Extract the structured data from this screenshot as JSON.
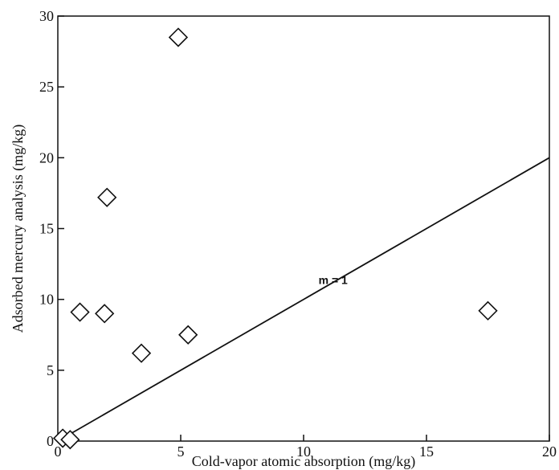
{
  "chart_data": {
    "type": "scatter",
    "xlabel": "Cold-vapor atomic absorption (mg/kg)",
    "ylabel": "Adsorbed mercury analysis (mg/kg)",
    "xlim": [
      0,
      20
    ],
    "ylim": [
      0,
      30
    ],
    "xticks": [
      "0",
      "5",
      "10",
      "15",
      "20"
    ],
    "yticks": [
      "0",
      "5",
      "10",
      "15",
      "20",
      "25",
      "30"
    ],
    "grid": false,
    "marker": "diamond",
    "points": [
      {
        "x": 0.2,
        "y": 0.2
      },
      {
        "x": 0.5,
        "y": 0.1
      },
      {
        "x": 0.9,
        "y": 9.1
      },
      {
        "x": 1.9,
        "y": 9.0
      },
      {
        "x": 2.0,
        "y": 17.2
      },
      {
        "x": 3.4,
        "y": 6.2
      },
      {
        "x": 4.9,
        "y": 28.5
      },
      {
        "x": 5.3,
        "y": 7.5
      },
      {
        "x": 17.5,
        "y": 9.2
      }
    ],
    "reference_line": {
      "label": "m = 1",
      "slope": 1,
      "x": [
        0,
        20
      ],
      "y": [
        0,
        20
      ]
    },
    "annotations": [
      {
        "text": "m = 1",
        "x": 11.2,
        "y": 11.1
      }
    ]
  }
}
